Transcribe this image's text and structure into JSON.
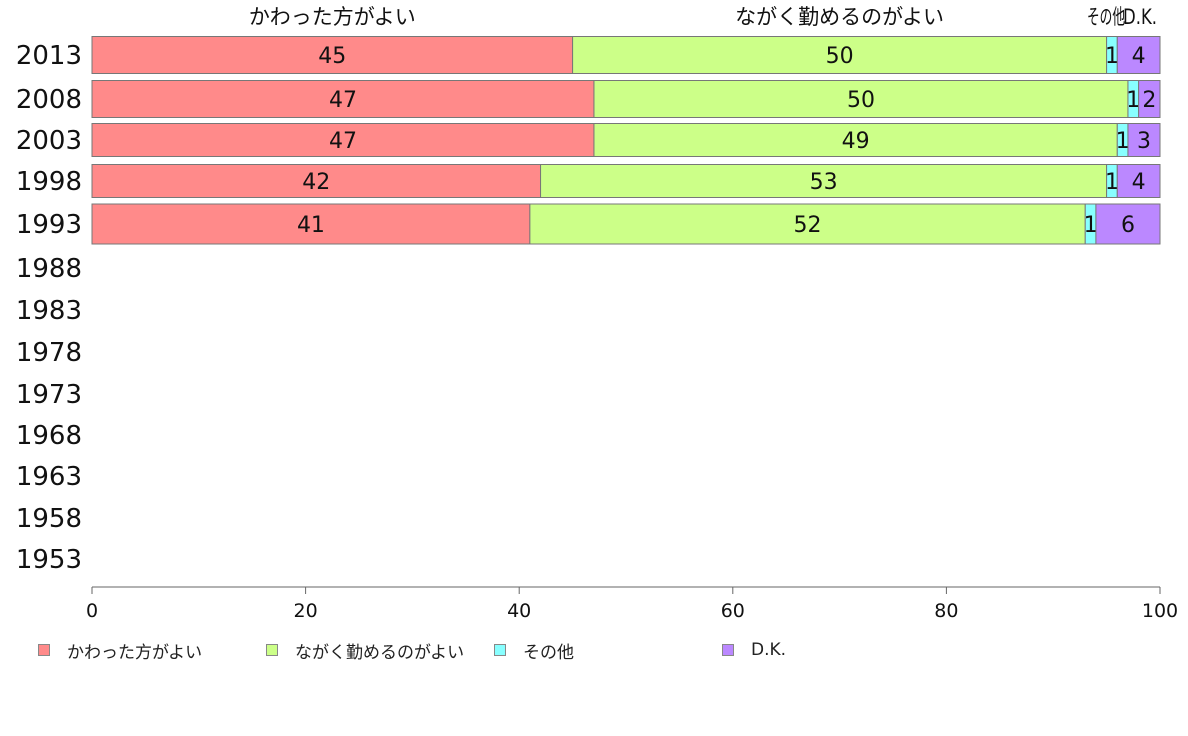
{
  "chart_data": {
    "type": "bar",
    "orientation": "horizontal",
    "stacked": true,
    "categories": [
      "2013",
      "2008",
      "2003",
      "1998",
      "1993",
      "1988",
      "1983",
      "1978",
      "1973",
      "1968",
      "1963",
      "1958",
      "1953"
    ],
    "series": [
      {
        "name": "かわった方がよい",
        "color": "#ff8a8a",
        "values": [
          45,
          47,
          47,
          42,
          41,
          null,
          null,
          null,
          null,
          null,
          null,
          null,
          null
        ]
      },
      {
        "name": "ながく勤めるのがよい",
        "color": "#ccff88",
        "values": [
          50,
          50,
          49,
          53,
          52,
          null,
          null,
          null,
          null,
          null,
          null,
          null,
          null
        ]
      },
      {
        "name": "その他",
        "color": "#88ffff",
        "values": [
          1,
          1,
          1,
          1,
          1,
          null,
          null,
          null,
          null,
          null,
          null,
          null,
          null
        ]
      },
      {
        "name": "D.K.",
        "color": "#bb88ff",
        "values": [
          4,
          2,
          3,
          4,
          6,
          null,
          null,
          null,
          null,
          null,
          null,
          null,
          null
        ]
      }
    ],
    "top_labels": [
      "かわった方がよい",
      "ながく勤めるのがよい",
      "その他",
      "D.K."
    ],
    "xlim": [
      0,
      100
    ],
    "xticks": [
      0,
      20,
      40,
      60,
      80,
      100
    ],
    "xlabel": "",
    "ylabel": "",
    "grid": false,
    "legend_position": "bottom"
  }
}
